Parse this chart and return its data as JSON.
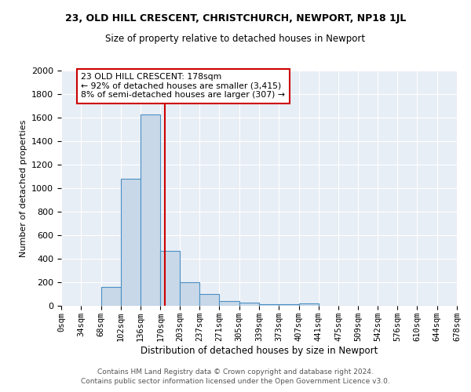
{
  "title1": "23, OLD HILL CRESCENT, CHRISTCHURCH, NEWPORT, NP18 1JL",
  "title2": "Size of property relative to detached houses in Newport",
  "xlabel": "Distribution of detached houses by size in Newport",
  "ylabel": "Number of detached properties",
  "bin_edges": [
    0,
    34,
    68,
    102,
    136,
    170,
    203,
    237,
    271,
    305,
    339,
    373,
    407,
    441,
    475,
    509,
    542,
    576,
    610,
    644,
    678
  ],
  "bar_heights": [
    0,
    0,
    160,
    1080,
    1630,
    470,
    200,
    100,
    40,
    25,
    15,
    15,
    20,
    0,
    0,
    0,
    0,
    0,
    0,
    0
  ],
  "bar_color": "#c8d8e8",
  "bar_edge_color": "#4a90c4",
  "vline_x": 178,
  "vline_color": "#cc0000",
  "annotation_text": "23 OLD HILL CRESCENT: 178sqm\n← 92% of detached houses are smaller (3,415)\n8% of semi-detached houses are larger (307) →",
  "annotation_box_color": "#cc0000",
  "annotation_text_color": "#000000",
  "background_color": "#e8eef5",
  "yticks": [
    0,
    200,
    400,
    600,
    800,
    1000,
    1200,
    1400,
    1600,
    1800,
    2000
  ],
  "ylim": [
    0,
    2000
  ],
  "grid_color": "#ffffff",
  "footer1": "Contains HM Land Registry data © Crown copyright and database right 2024.",
  "footer2": "Contains public sector information licensed under the Open Government Licence v3.0."
}
